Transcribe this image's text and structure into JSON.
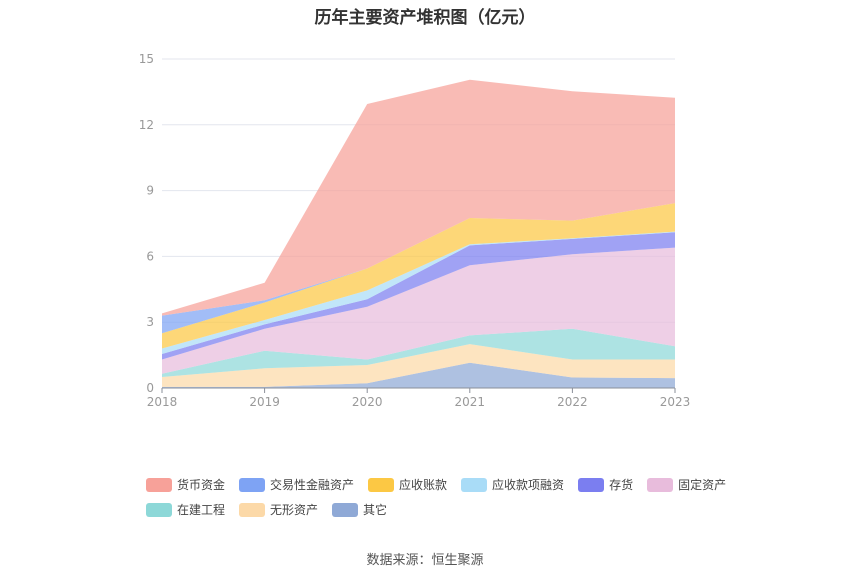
{
  "source": "数据来源：恒生聚源",
  "chart_data": {
    "type": "area",
    "stacked": true,
    "title": "历年主要资产堆积图（亿元）",
    "xlabel": "",
    "ylabel": "",
    "x": [
      "2018",
      "2019",
      "2020",
      "2021",
      "2022",
      "2023"
    ],
    "ylim": [
      0,
      15
    ],
    "yticks": [
      0,
      3,
      6,
      9,
      12,
      15
    ],
    "grid": true,
    "legend_position": "bottom",
    "series": [
      {
        "name": "其它",
        "color": "#8fa9d6",
        "values": [
          0.05,
          0.05,
          0.22,
          1.15,
          0.48,
          0.45
        ]
      },
      {
        "name": "无形资产",
        "color": "#fcd9a8",
        "values": [
          0.45,
          0.85,
          0.83,
          0.85,
          0.82,
          0.85
        ]
      },
      {
        "name": "在建工程",
        "color": "#8dd8d8",
        "values": [
          0.15,
          0.8,
          0.25,
          0.4,
          1.4,
          0.6
        ]
      },
      {
        "name": "固定资产",
        "color": "#e8bcdc",
        "values": [
          0.65,
          1.0,
          2.4,
          3.2,
          3.4,
          4.5
        ]
      },
      {
        "name": "存货",
        "color": "#7b7ef0",
        "values": [
          0.25,
          0.2,
          0.35,
          0.9,
          0.7,
          0.7
        ]
      },
      {
        "name": "应收款项融资",
        "color": "#a9dcf7",
        "values": [
          0.25,
          0.2,
          0.4,
          0.05,
          0.03,
          0.03
        ]
      },
      {
        "name": "应收账款",
        "color": "#fcc844",
        "values": [
          0.7,
          0.8,
          1.0,
          1.2,
          0.8,
          1.3
        ]
      },
      {
        "name": "交易性金融资产",
        "color": "#7ea3f4",
        "values": [
          0.8,
          0.1,
          0.0,
          0.0,
          0.0,
          0.0
        ]
      },
      {
        "name": "货币资金",
        "color": "#f7a199",
        "values": [
          0.1,
          0.8,
          7.5,
          6.3,
          5.9,
          4.8
        ]
      }
    ],
    "legend_order": [
      "货币资金",
      "交易性金融资产",
      "应收账款",
      "应收款项融资",
      "存货",
      "固定资产",
      "在建工程",
      "无形资产",
      "其它"
    ]
  }
}
